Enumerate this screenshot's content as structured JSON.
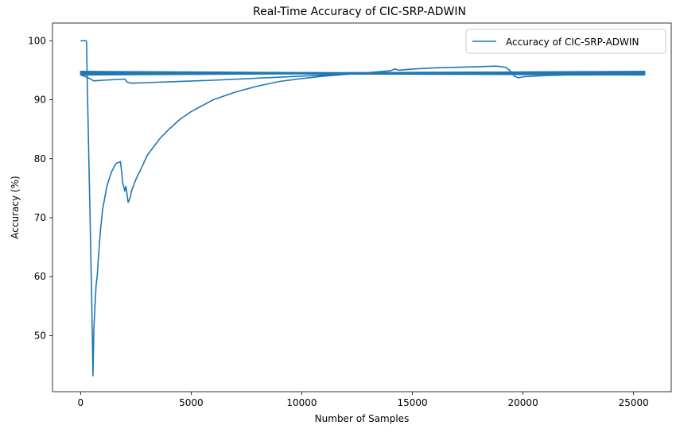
{
  "chart_data": {
    "type": "line",
    "title": "Real-Time Accuracy of CIC-SRP-ADWIN",
    "xlabel": "Number of Samples",
    "ylabel": "Accuracy (%)",
    "xlim": [
      -1270,
      26700
    ],
    "ylim": [
      40.5,
      103
    ],
    "xticks": [
      0,
      5000,
      10000,
      15000,
      20000,
      25000
    ],
    "yticks": [
      50,
      60,
      70,
      80,
      90,
      100
    ],
    "grid": false,
    "legend_position": "top-right",
    "series": [
      {
        "name": "Accuracy of CIC-SRP-ADWIN",
        "color": "#1f77b4",
        "x": [
          0,
          250,
          270,
          300,
          400,
          500,
          560,
          580,
          600,
          650,
          700,
          750,
          800,
          900,
          1000,
          1200,
          1400,
          1600,
          1800,
          1850,
          1900,
          2000,
          2050,
          2100,
          2150,
          2200,
          2250,
          2300,
          2500,
          2800,
          3000,
          3300,
          3600,
          4000,
          4500,
          5000,
          6000,
          7000,
          8000,
          9000,
          10000,
          11000,
          12000,
          13000,
          14000,
          14200,
          14400,
          15000,
          16000,
          17000,
          18000,
          18800,
          19200,
          19400,
          19600,
          19800,
          20000,
          21000,
          22000,
          23000,
          24000,
          25000,
          25500,
          0,
          25500,
          0,
          25500,
          0,
          25500,
          0,
          25500,
          0,
          25500,
          0,
          300,
          600,
          1000,
          2000,
          2100,
          2200,
          2300,
          3000,
          6000,
          10000,
          13000,
          25500,
          0,
          25500,
          0,
          25500
        ],
        "y": [
          100,
          100,
          99.8,
          93,
          75,
          57,
          43.2,
          47,
          51,
          55,
          58.5,
          60,
          63,
          68,
          71.5,
          75.5,
          77.8,
          79.2,
          79.5,
          78,
          76,
          74.5,
          75.3,
          74,
          72.6,
          73,
          73.5,
          74.5,
          76.5,
          78.8,
          80.5,
          82,
          83.5,
          85,
          86.7,
          88,
          90,
          91.3,
          92.3,
          93.1,
          93.6,
          94,
          94.3,
          94.6,
          94.9,
          95.2,
          95,
          95.2,
          95.4,
          95.5,
          95.6,
          95.7,
          95.5,
          95,
          94,
          93.7,
          93.9,
          94.1,
          94.2,
          94.2,
          94.3,
          94.4,
          94.5,
          94.6,
          94.4,
          94.7,
          94.3,
          94.8,
          94.2,
          94.5,
          94.6,
          94.3,
          94.7,
          94.2,
          93.8,
          93.2,
          93.3,
          93.5,
          93,
          92.9,
          92.8,
          92.9,
          93.3,
          94,
          94.5,
          94.8,
          94.4,
          94.5,
          94.6,
          94.5
        ]
      }
    ]
  }
}
